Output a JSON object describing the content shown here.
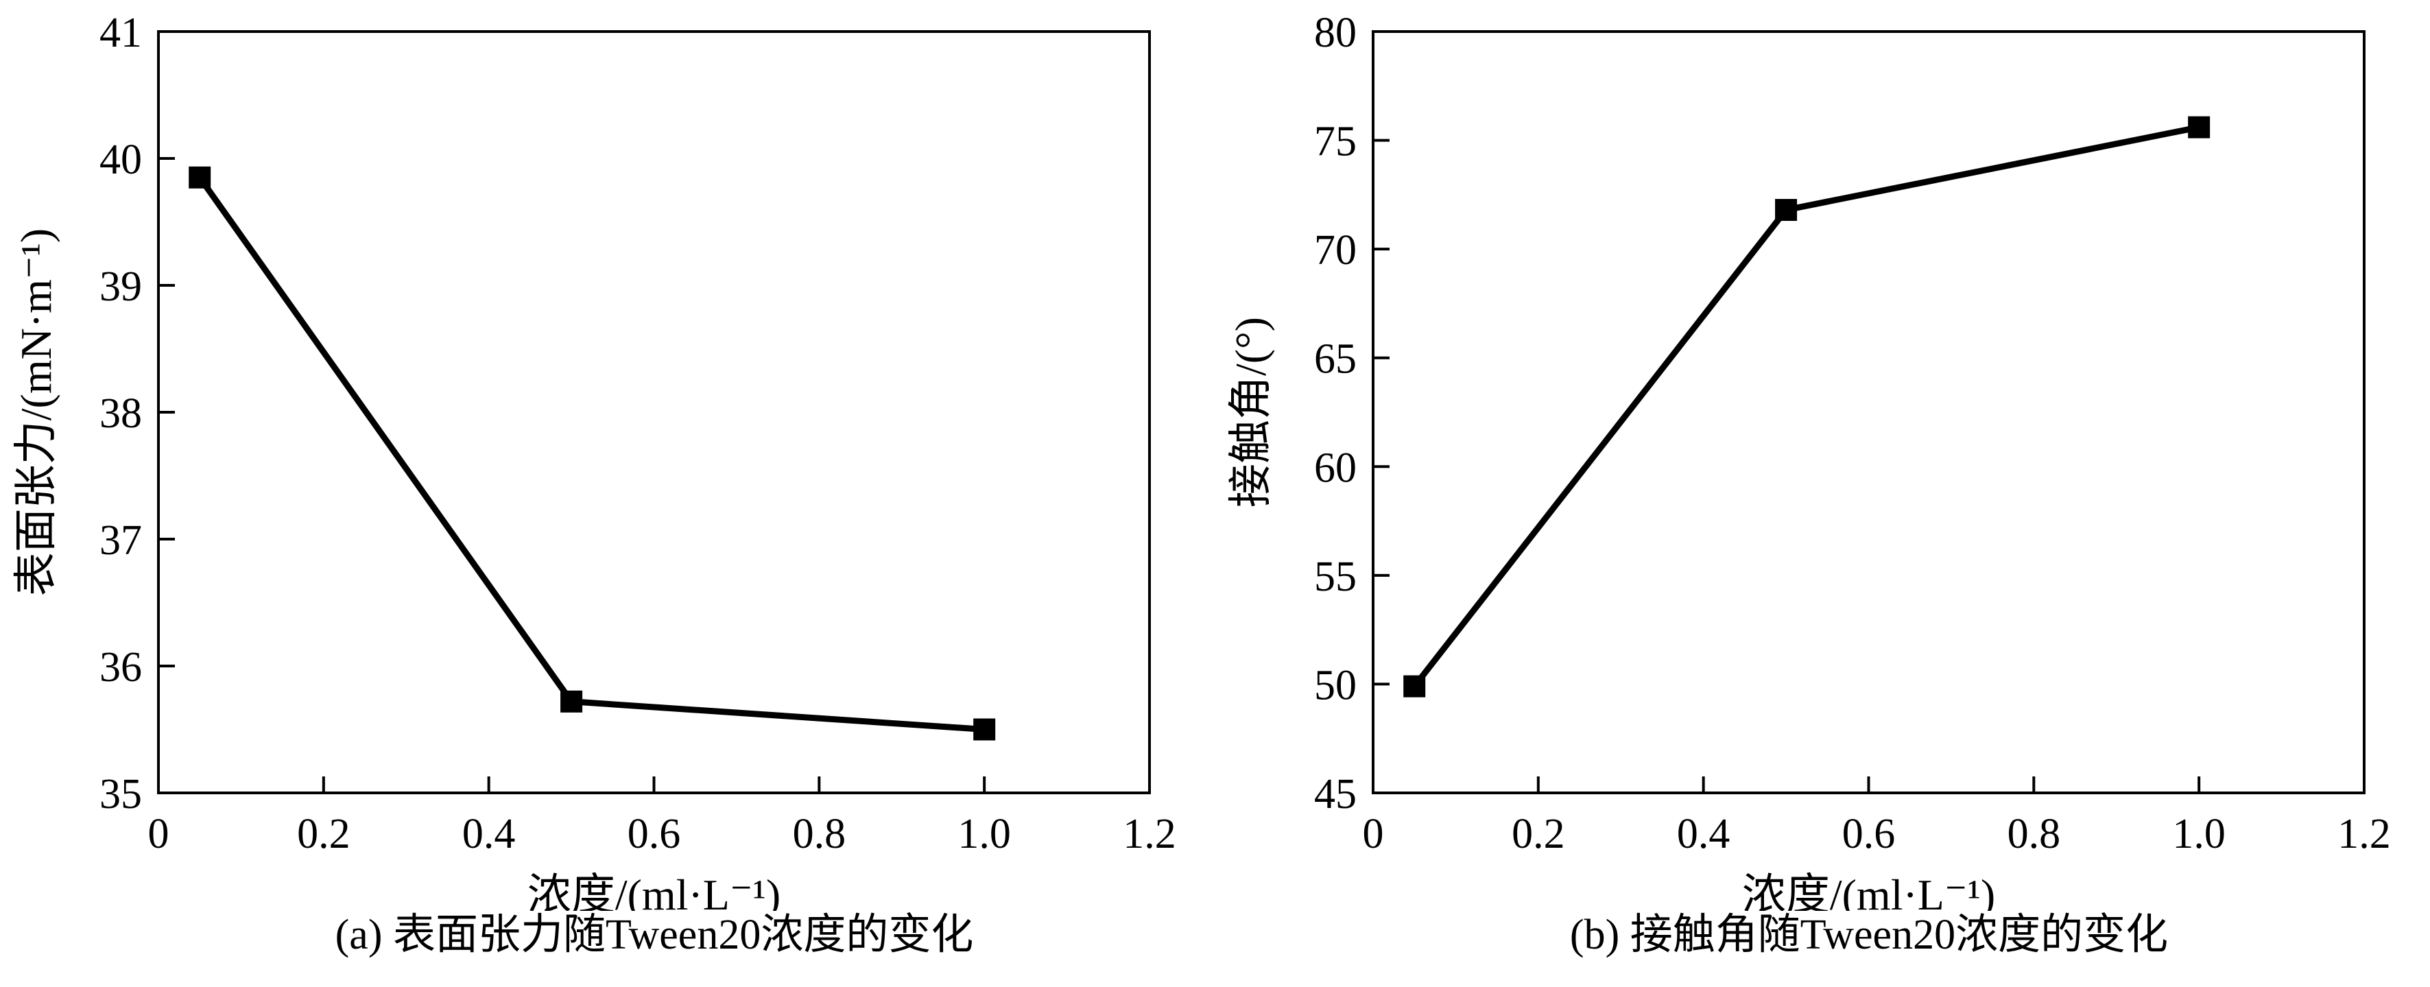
{
  "page": {
    "background_color": "#ffffff",
    "foreground_color": "#000000"
  },
  "chart_data": [
    {
      "type": "line",
      "title": "",
      "x": [
        0.05,
        0.5,
        1.0
      ],
      "values": [
        39.85,
        35.72,
        35.5
      ],
      "xlabel": "浓度/(ml·L⁻¹)",
      "ylabel": "表面张力/(mN·m⁻¹)",
      "xlim": [
        0,
        1.2
      ],
      "ylim": [
        35,
        41
      ],
      "xticks": [
        0,
        0.2,
        0.4,
        0.6,
        0.8,
        1.0,
        1.2
      ],
      "xtick_labels": [
        "0",
        "0.2",
        "0.4",
        "0.6",
        "0.8",
        "1.0",
        "1.2"
      ],
      "yticks": [
        35,
        36,
        37,
        38,
        39,
        40,
        41
      ],
      "ytick_labels": [
        "35",
        "36",
        "37",
        "38",
        "39",
        "40",
        "41"
      ],
      "marker": "filled-square",
      "line_color": "#000000",
      "grid": false,
      "legend": null,
      "caption": "(a) 表面张力随Tween20浓度的变化"
    },
    {
      "type": "line",
      "title": "",
      "x": [
        0.05,
        0.5,
        1.0
      ],
      "values": [
        49.9,
        71.8,
        75.6
      ],
      "xlabel": "浓度/(ml·L⁻¹)",
      "ylabel": "接触角/(°)",
      "xlim": [
        0,
        1.2
      ],
      "ylim": [
        45,
        80
      ],
      "xticks": [
        0,
        0.2,
        0.4,
        0.6,
        0.8,
        1.0,
        1.2
      ],
      "xtick_labels": [
        "0",
        "0.2",
        "0.4",
        "0.6",
        "0.8",
        "1.0",
        "1.2"
      ],
      "yticks": [
        45,
        50,
        55,
        60,
        65,
        70,
        75,
        80
      ],
      "ytick_labels": [
        "45",
        "50",
        "55",
        "60",
        "65",
        "70",
        "75",
        "80"
      ],
      "marker": "filled-square",
      "line_color": "#000000",
      "grid": false,
      "legend": null,
      "caption": "(b) 接触角随Tween20浓度的变化"
    }
  ]
}
